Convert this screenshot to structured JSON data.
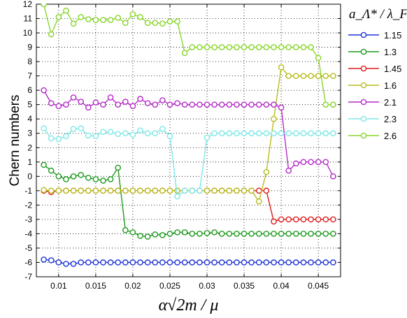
{
  "chart_data": {
    "type": "line",
    "xlabel": "α√2m / μ",
    "ylabel": "Chern numbers",
    "xlim": [
      0.007,
      0.048
    ],
    "ylim": [
      -7,
      12
    ],
    "xticks": [
      0.01,
      0.015,
      0.02,
      0.025,
      0.03,
      0.035,
      0.04,
      0.045
    ],
    "xtick_labels": [
      "0.01",
      "0.015",
      "0.02",
      "0.025",
      "0.03",
      "0.035",
      "0.04",
      "0.045"
    ],
    "yticks": [
      -7,
      -6,
      -5,
      -4,
      -3,
      -2,
      -1,
      0,
      1,
      2,
      3,
      4,
      5,
      6,
      7,
      8,
      9,
      10,
      11,
      12
    ],
    "ytick_labels": [
      "-7",
      "-6",
      "-5",
      "-4",
      "-3",
      "-2",
      "-1",
      "0",
      "1",
      "2",
      "3",
      "4",
      "5",
      "6",
      "7",
      "8",
      "9",
      "10",
      "11",
      "12"
    ],
    "grid": true,
    "legend": {
      "placement": "outside-right",
      "title": "a_Λ* / λ_F"
    },
    "x": [
      0.008,
      0.009,
      0.01,
      0.011,
      0.012,
      0.013,
      0.014,
      0.015,
      0.016,
      0.017,
      0.018,
      0.019,
      0.02,
      0.021,
      0.022,
      0.023,
      0.024,
      0.025,
      0.026,
      0.027,
      0.028,
      0.029,
      0.03,
      0.031,
      0.032,
      0.033,
      0.034,
      0.035,
      0.036,
      0.037,
      0.038,
      0.039,
      0.04,
      0.041,
      0.042,
      0.043,
      0.044,
      0.045,
      0.046,
      0.047
    ],
    "series": [
      {
        "name": "1.15",
        "color": "#1f35d6",
        "values": [
          -5.8,
          -5.85,
          -6.0,
          -6.1,
          -6.1,
          -6.0,
          -6.0,
          -6.0,
          -6.0,
          -6.0,
          -6.0,
          -6.0,
          -6.0,
          -6.0,
          -6.0,
          -6.0,
          -6.0,
          -6.0,
          -6.0,
          -6.0,
          -6.0,
          -6.0,
          -6.0,
          -6.0,
          -6.0,
          -6.0,
          -6.0,
          -6.0,
          -6.0,
          -6.0,
          -6.0,
          -6.0,
          -6.0,
          -6.0,
          -6.0,
          -6.0,
          -6.0,
          -6.0,
          -6.0,
          -6.0
        ]
      },
      {
        "name": "1.3",
        "color": "#1e9a1e",
        "values": [
          0.8,
          0.4,
          0.0,
          -0.2,
          0.0,
          0.1,
          -0.1,
          -0.2,
          -0.3,
          -0.2,
          0.6,
          -3.75,
          -3.9,
          -4.15,
          -4.2,
          -4.05,
          -4.1,
          -4.0,
          -3.9,
          -3.9,
          -4.0,
          -4.0,
          -3.95,
          -3.9,
          -4.0,
          -4.0,
          -4.0,
          -4.0,
          -4.0,
          -4.0,
          -4.0,
          -4.0,
          -4.0,
          -4.0,
          -4.0,
          -4.0,
          -4.0,
          -4.0,
          -4.0,
          -4.0
        ]
      },
      {
        "name": "1.45",
        "color": "#e01b1b",
        "values": [
          -1.0,
          -1.1,
          -1.0,
          -1.0,
          -1.0,
          -1.0,
          -1.0,
          -1.0,
          -1.0,
          -1.0,
          -1.0,
          -1.0,
          -1.0,
          -1.0,
          -1.0,
          -1.0,
          -1.0,
          -1.0,
          -1.0,
          -1.0,
          -1.0,
          -1.0,
          -1.0,
          -1.0,
          -1.0,
          -1.0,
          -1.0,
          -1.0,
          -1.0,
          -1.0,
          -1.0,
          -3.15,
          -3.0,
          -3.0,
          -3.0,
          -3.0,
          -3.0,
          -3.0,
          -3.0,
          -3.0
        ]
      },
      {
        "name": "1.6",
        "color": "#b8bc1c",
        "values": [
          -0.95,
          -1.0,
          -1.0,
          -1.0,
          -1.0,
          -1.0,
          -1.0,
          -1.0,
          -1.0,
          -1.0,
          -1.0,
          -1.0,
          -1.0,
          -1.0,
          -1.0,
          -1.0,
          -1.0,
          -1.0,
          -1.0,
          -1.0,
          -1.0,
          -1.0,
          -1.0,
          -1.0,
          -1.0,
          -1.0,
          -1.0,
          -1.0,
          -1.0,
          -1.75,
          0.3,
          4.0,
          7.6,
          7.0,
          7.0,
          7.0,
          7.0,
          7.0,
          7.0,
          7.0
        ]
      },
      {
        "name": "2.1",
        "color": "#b52bc9",
        "values": [
          6.0,
          5.1,
          4.9,
          5.0,
          5.5,
          5.2,
          4.8,
          5.15,
          5.0,
          5.5,
          5.0,
          5.2,
          4.9,
          5.4,
          5.1,
          5.0,
          5.3,
          5.0,
          5.1,
          5.0,
          5.0,
          5.0,
          5.0,
          5.0,
          5.0,
          5.0,
          5.0,
          5.0,
          5.0,
          5.0,
          5.0,
          5.0,
          4.8,
          0.4,
          0.9,
          1.0,
          1.0,
          1.0,
          1.0,
          0.0
        ]
      },
      {
        "name": "2.3",
        "color": "#7de8e6",
        "values": [
          3.35,
          2.65,
          2.6,
          2.8,
          3.3,
          3.35,
          2.85,
          2.8,
          3.1,
          3.1,
          2.95,
          3.0,
          2.9,
          3.2,
          3.0,
          3.0,
          3.3,
          2.8,
          -1.4,
          -1.0,
          -1.0,
          -1.0,
          2.7,
          3.0,
          3.0,
          3.0,
          3.0,
          3.0,
          3.0,
          3.0,
          3.0,
          3.0,
          3.0,
          3.0,
          3.0,
          3.0,
          3.0,
          3.0,
          3.0,
          3.0
        ]
      },
      {
        "name": "2.6",
        "color": "#88d62a",
        "values": [
          12.0,
          9.9,
          11.1,
          11.55,
          10.65,
          11.1,
          10.95,
          10.9,
          10.9,
          10.9,
          11.05,
          10.7,
          11.3,
          11.1,
          10.7,
          10.7,
          10.65,
          10.8,
          10.8,
          8.6,
          9.0,
          9.0,
          9.0,
          9.0,
          9.0,
          9.0,
          9.0,
          9.0,
          9.0,
          9.0,
          9.0,
          9.0,
          9.0,
          9.0,
          9.0,
          9.0,
          9.0,
          8.25,
          5.0,
          5.0
        ]
      }
    ]
  }
}
